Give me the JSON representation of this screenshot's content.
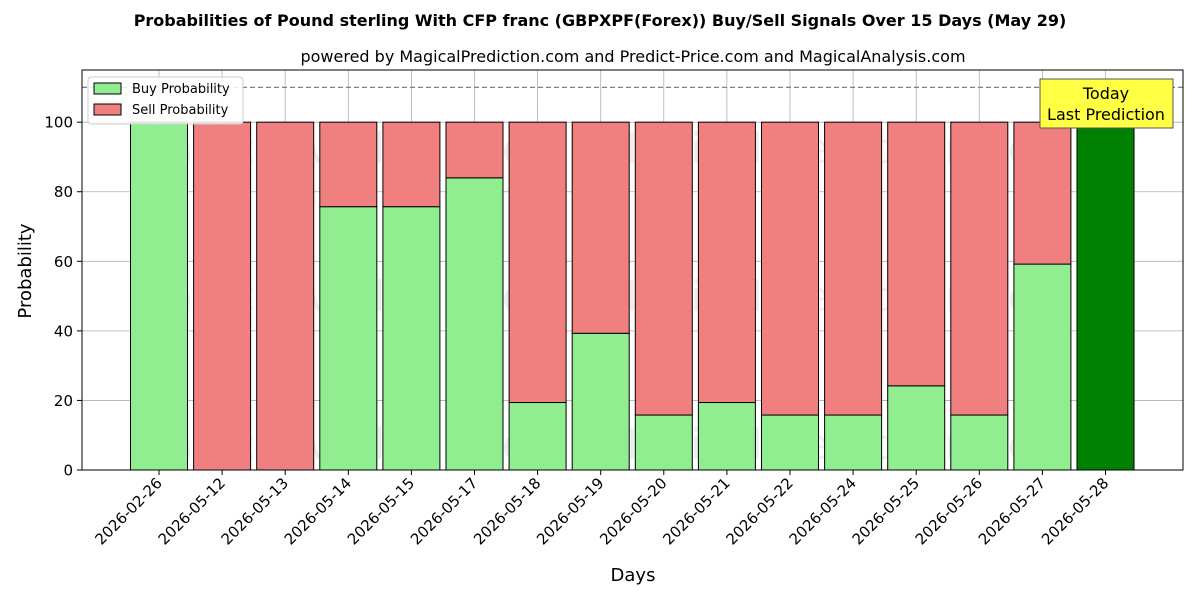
{
  "chart_data": {
    "type": "bar",
    "stacked": true,
    "title": "Probabilities of Pound sterling With CFP franc (GBPXPF(Forex)) Buy/Sell Signals Over 15 Days (May 29)",
    "subtitle": "powered by MagicalPrediction.com and Predict-Price.com and MagicalAnalysis.com",
    "xlabel": "Days",
    "ylabel": "Probability",
    "ylim": [
      0,
      115
    ],
    "yticks": [
      0,
      20,
      40,
      60,
      80,
      100
    ],
    "grid": true,
    "legend_position": "top-left",
    "reference_line": 110,
    "categories": [
      "2026-02-26",
      "2026-05-12",
      "2026-05-13",
      "2026-05-14",
      "2026-05-15",
      "2026-05-17",
      "2026-05-18",
      "2026-05-19",
      "2026-05-20",
      "2026-05-21",
      "2026-05-22",
      "2026-05-24",
      "2026-05-25",
      "2026-05-26",
      "2026-05-27",
      "2026-05-28"
    ],
    "series": [
      {
        "name": "Buy Probability",
        "color": "#90ee90",
        "values": [
          100,
          0,
          0,
          75.7,
          75.7,
          84,
          19.4,
          39.3,
          15.8,
          19.4,
          15.8,
          15.8,
          24.2,
          15.8,
          59.2,
          100
        ]
      },
      {
        "name": "Sell Probability",
        "color": "#f08080",
        "values": [
          0,
          100,
          100,
          24.3,
          24.3,
          16,
          80.6,
          60.7,
          84.2,
          80.6,
          84.2,
          84.2,
          75.8,
          84.2,
          40.8,
          0
        ]
      }
    ],
    "highlight": {
      "index": 15,
      "color": "#008000"
    },
    "annotation": {
      "line1": "Today",
      "line2": "Last Prediction",
      "color": "#ffff44"
    },
    "watermark": [
      "MagicalAnalysis.com",
      "MagicalPrediction.com"
    ]
  }
}
